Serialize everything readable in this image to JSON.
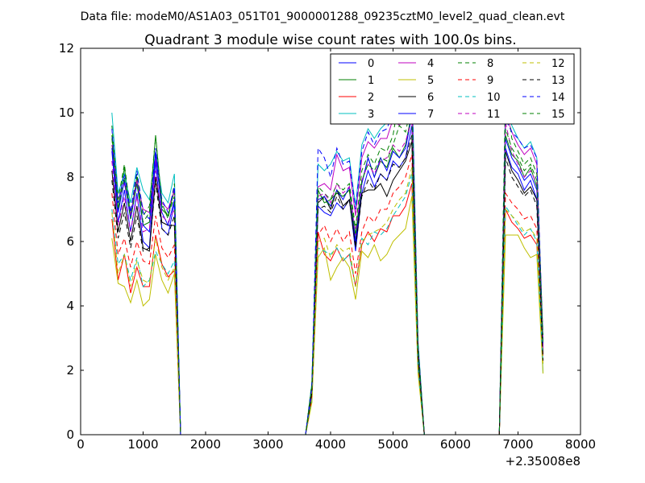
{
  "header": {
    "data_file": "Data file: modeM0/AS1A03_051T01_9000001288_09235cztM0_level2_quad_clean.evt"
  },
  "chart_data": {
    "type": "line",
    "title": "Quadrant 3 module wise count rates with 100.0s bins.",
    "xlabel": "",
    "ylabel": "",
    "xlim": [
      0,
      8000
    ],
    "ylim": [
      0,
      12
    ],
    "x_ticks": [
      0,
      1000,
      2000,
      3000,
      4000,
      5000,
      6000,
      7000,
      8000
    ],
    "y_ticks": [
      0,
      2,
      4,
      6,
      8,
      10,
      12
    ],
    "x_ticks_text": [
      "0",
      "1000",
      "2000",
      "3000",
      "4000",
      "5000",
      "6000",
      "7000",
      "8000"
    ],
    "y_ticks_text": [
      "0",
      "2",
      "4",
      "6",
      "8",
      "10",
      "12"
    ],
    "x_offset_label": "+2.35008e8",
    "legend_position": "top-right",
    "grid": false,
    "x": [
      500,
      600,
      700,
      800,
      900,
      1000,
      1100,
      1200,
      1300,
      1400,
      1500,
      1600,
      1700,
      1800,
      1900,
      2000,
      2100,
      2200,
      2300,
      2400,
      2500,
      2600,
      2700,
      2800,
      2900,
      3000,
      3100,
      3200,
      3300,
      3400,
      3500,
      3600,
      3700,
      3800,
      3900,
      4000,
      4100,
      4200,
      4300,
      4400,
      4500,
      4600,
      4700,
      4800,
      4900,
      5000,
      5100,
      5200,
      5300,
      5400,
      5500,
      5600,
      5700,
      5800,
      5900,
      6000,
      6100,
      6200,
      6300,
      6400,
      6500,
      6600,
      6700,
      6800,
      6900,
      7000,
      7100,
      7200,
      7300,
      7400
    ],
    "series": [
      {
        "name": "0",
        "color": "#0000ff",
        "dash": "solid",
        "values": [
          8.8,
          6.6,
          7.6,
          6.3,
          7.5,
          6.0,
          5.8,
          8.5,
          6.4,
          6.2,
          7.2,
          0,
          0,
          0,
          0,
          0,
          0,
          0,
          0,
          0,
          0,
          0,
          0,
          0,
          0,
          0,
          0,
          0,
          0,
          0,
          0,
          0,
          1.4,
          7.1,
          6.9,
          6.8,
          7.2,
          7.0,
          7.3,
          5.7,
          7.5,
          8.2,
          7.7,
          8.1,
          7.9,
          8.5,
          8.3,
          8.6,
          9.6,
          2.5,
          0,
          0,
          0,
          0,
          0,
          0,
          0,
          0,
          0,
          0,
          0,
          0,
          0,
          8.9,
          8.3,
          8.1,
          7.6,
          7.9,
          7.3,
          2.8
        ]
      },
      {
        "name": "1",
        "color": "#008000",
        "dash": "solid",
        "values": [
          9.3,
          7.0,
          8.3,
          6.8,
          8.0,
          6.5,
          6.6,
          8.7,
          7.0,
          6.8,
          7.6,
          0,
          0,
          0,
          0,
          0,
          0,
          0,
          0,
          0,
          0,
          0,
          0,
          0,
          0,
          0,
          0,
          0,
          0,
          0,
          0,
          0,
          1.5,
          7.6,
          7.2,
          7.3,
          7.5,
          7.4,
          7.6,
          6.0,
          7.8,
          8.6,
          8.0,
          8.5,
          8.3,
          8.9,
          8.6,
          9.0,
          10.0,
          2.6,
          0,
          0,
          0,
          0,
          0,
          0,
          0,
          0,
          0,
          0,
          0,
          0,
          0,
          9.3,
          8.7,
          8.5,
          8.0,
          8.3,
          7.7,
          2.9
        ]
      },
      {
        "name": "2",
        "color": "#ff0000",
        "dash": "solid",
        "values": [
          6.7,
          4.8,
          5.6,
          4.4,
          5.2,
          4.6,
          4.6,
          6.2,
          5.3,
          4.9,
          5.1,
          0,
          0,
          0,
          0,
          0,
          0,
          0,
          0,
          0,
          0,
          0,
          0,
          0,
          0,
          0,
          0,
          0,
          0,
          0,
          0,
          0,
          1.1,
          6.3,
          5.6,
          5.4,
          5.8,
          5.4,
          5.6,
          4.6,
          5.9,
          6.3,
          6.0,
          6.4,
          6.3,
          6.8,
          6.8,
          7.1,
          7.8,
          2.0,
          0,
          0,
          0,
          0,
          0,
          0,
          0,
          0,
          0,
          0,
          0,
          0,
          0,
          7.0,
          6.6,
          6.4,
          6.1,
          6.2,
          5.9,
          2.2
        ]
      },
      {
        "name": "3",
        "color": "#00bfbf",
        "dash": "solid",
        "values": [
          10.0,
          7.5,
          8.1,
          7.2,
          8.3,
          7.6,
          7.3,
          8.8,
          7.5,
          7.2,
          8.1,
          0,
          0,
          0,
          0,
          0,
          0,
          0,
          0,
          0,
          0,
          0,
          0,
          0,
          0,
          0,
          0,
          0,
          0,
          0,
          0,
          0,
          1.6,
          8.4,
          8.2,
          8.4,
          8.8,
          8.5,
          8.6,
          7.1,
          9.0,
          9.5,
          9.2,
          9.5,
          9.7,
          10.2,
          10.0,
          10.4,
          11.3,
          2.9,
          0,
          0,
          0,
          0,
          0,
          0,
          0,
          0,
          0,
          0,
          0,
          0,
          0,
          10.4,
          9.6,
          9.2,
          8.9,
          9.1,
          8.6,
          1.9
        ]
      },
      {
        "name": "4",
        "color": "#bf00bf",
        "dash": "solid",
        "values": [
          9.0,
          7.3,
          7.8,
          6.8,
          7.9,
          7.0,
          6.9,
          8.6,
          7.2,
          7.0,
          7.6,
          0,
          0,
          0,
          0,
          0,
          0,
          0,
          0,
          0,
          0,
          0,
          0,
          0,
          0,
          0,
          0,
          0,
          0,
          0,
          0,
          0,
          1.5,
          7.7,
          7.8,
          7.6,
          8.7,
          8.2,
          8.3,
          6.8,
          8.6,
          9.1,
          8.9,
          9.2,
          9.2,
          9.8,
          9.6,
          9.9,
          10.7,
          2.7,
          0,
          0,
          0,
          0,
          0,
          0,
          0,
          0,
          0,
          0,
          0,
          0,
          0,
          10.0,
          9.4,
          9.0,
          8.7,
          8.9,
          8.4,
          2.9
        ]
      },
      {
        "name": "5",
        "color": "#bfbf00",
        "dash": "solid",
        "values": [
          6.1,
          4.7,
          4.6,
          4.1,
          4.8,
          4.0,
          4.2,
          5.6,
          4.8,
          4.4,
          5.0,
          0,
          0,
          0,
          0,
          0,
          0,
          0,
          0,
          0,
          0,
          0,
          0,
          0,
          0,
          0,
          0,
          0,
          0,
          0,
          0,
          0,
          1.0,
          5.5,
          5.8,
          4.8,
          5.2,
          5.5,
          5.2,
          4.2,
          5.7,
          5.5,
          5.9,
          5.4,
          5.6,
          6.0,
          6.2,
          6.4,
          7.4,
          1.9,
          0,
          0,
          0,
          0,
          0,
          0,
          0,
          0,
          0,
          0,
          0,
          0,
          0,
          6.2,
          6.2,
          6.2,
          5.8,
          5.5,
          5.6,
          1.9
        ]
      },
      {
        "name": "6",
        "color": "#000000",
        "dash": "solid",
        "values": [
          8.2,
          6.3,
          7.2,
          6.0,
          7.1,
          5.8,
          5.7,
          8.0,
          6.6,
          6.5,
          6.5,
          0,
          0,
          0,
          0,
          0,
          0,
          0,
          0,
          0,
          0,
          0,
          0,
          0,
          0,
          0,
          0,
          0,
          0,
          0,
          0,
          0,
          1.3,
          7.2,
          7.4,
          7.0,
          7.6,
          7.1,
          7.3,
          5.9,
          7.5,
          7.6,
          7.6,
          7.8,
          7.4,
          7.9,
          8.2,
          8.5,
          9.1,
          2.3,
          0,
          0,
          0,
          0,
          0,
          0,
          0,
          0,
          0,
          0,
          0,
          0,
          0,
          8.8,
          8.2,
          7.9,
          7.5,
          7.7,
          7.3,
          2.5
        ]
      },
      {
        "name": "7",
        "color": "#0000ff",
        "dash": "solid",
        "values": [
          8.9,
          6.9,
          7.9,
          6.7,
          7.8,
          6.5,
          6.3,
          8.8,
          6.9,
          6.5,
          7.3,
          0,
          0,
          0,
          0,
          0,
          0,
          0,
          0,
          0,
          0,
          0,
          0,
          0,
          0,
          0,
          0,
          0,
          0,
          0,
          0,
          0,
          1.4,
          7.3,
          7.4,
          7.1,
          7.6,
          7.3,
          7.7,
          6.0,
          7.8,
          8.6,
          8.0,
          8.6,
          8.2,
          8.8,
          8.6,
          8.9,
          9.9,
          2.6,
          0,
          0,
          0,
          0,
          0,
          0,
          0,
          0,
          0,
          0,
          0,
          0,
          0,
          9.2,
          8.6,
          8.3,
          7.9,
          8.1,
          7.6,
          2.7
        ]
      },
      {
        "name": "8",
        "color": "#008000",
        "dash": "dashed",
        "values": [
          9.6,
          7.3,
          8.4,
          6.9,
          8.1,
          6.8,
          7.1,
          9.3,
          7.2,
          6.7,
          7.8,
          0,
          0,
          0,
          0,
          0,
          0,
          0,
          0,
          0,
          0,
          0,
          0,
          0,
          0,
          0,
          0,
          0,
          0,
          0,
          0,
          0,
          1.6,
          7.7,
          7.5,
          7.3,
          7.8,
          7.6,
          7.8,
          6.4,
          8.2,
          8.7,
          8.4,
          8.9,
          8.8,
          9.3,
          10.5,
          10.2,
          10.0,
          2.8,
          0,
          0,
          0,
          0,
          0,
          0,
          0,
          0,
          0,
          0,
          0,
          0,
          0,
          10.8,
          9.2,
          8.8,
          8.4,
          8.6,
          8.1,
          3.1
        ]
      },
      {
        "name": "9",
        "color": "#ff0000",
        "dash": "dashed",
        "values": [
          7.5,
          5.6,
          6.1,
          5.2,
          6.0,
          5.4,
          5.3,
          6.8,
          5.8,
          5.5,
          5.9,
          0,
          0,
          0,
          0,
          0,
          0,
          0,
          0,
          0,
          0,
          0,
          0,
          0,
          0,
          0,
          0,
          0,
          0,
          0,
          0,
          0,
          1.2,
          6.2,
          6.5,
          6.0,
          6.4,
          6.0,
          6.3,
          5.0,
          6.3,
          6.8,
          6.6,
          7.0,
          7.0,
          7.5,
          7.7,
          8.0,
          8.7,
          2.2,
          0,
          0,
          0,
          0,
          0,
          0,
          0,
          0,
          0,
          0,
          0,
          0,
          0,
          7.5,
          7.2,
          7.0,
          6.7,
          6.8,
          6.4,
          2.4
        ]
      },
      {
        "name": "10",
        "color": "#00bfbf",
        "dash": "dashed",
        "values": [
          7.0,
          5.3,
          5.6,
          4.8,
          5.5,
          4.6,
          4.8,
          5.7,
          5.3,
          5.0,
          5.4,
          0,
          0,
          0,
          0,
          0,
          0,
          0,
          0,
          0,
          0,
          0,
          0,
          0,
          0,
          0,
          0,
          0,
          0,
          0,
          0,
          0,
          1.1,
          5.8,
          5.7,
          5.6,
          5.8,
          5.4,
          5.6,
          4.6,
          6.1,
          5.9,
          6.3,
          6.2,
          6.4,
          6.8,
          7.1,
          7.4,
          8.1,
          2.1,
          0,
          0,
          0,
          0,
          0,
          0,
          0,
          0,
          0,
          0,
          0,
          0,
          0,
          7.1,
          6.8,
          6.5,
          6.2,
          6.4,
          6.0,
          2.2
        ]
      },
      {
        "name": "11",
        "color": "#bf00bf",
        "dash": "dashed",
        "values": [
          8.5,
          6.5,
          7.4,
          6.3,
          7.4,
          6.3,
          6.4,
          8.2,
          6.8,
          6.6,
          7.0,
          0,
          0,
          0,
          0,
          0,
          0,
          0,
          0,
          0,
          0,
          0,
          0,
          0,
          0,
          0,
          0,
          0,
          0,
          0,
          0,
          0,
          1.4,
          7.4,
          7.5,
          7.2,
          7.8,
          7.5,
          7.7,
          6.2,
          7.9,
          8.4,
          8.1,
          8.5,
          8.6,
          9.0,
          8.8,
          9.1,
          9.8,
          2.5,
          0,
          0,
          0,
          0,
          0,
          0,
          0,
          0,
          0,
          0,
          0,
          0,
          0,
          9.7,
          8.8,
          8.4,
          8.0,
          8.2,
          7.8,
          2.7
        ]
      },
      {
        "name": "12",
        "color": "#bfbf00",
        "dash": "dashed",
        "values": [
          6.9,
          5.0,
          5.6,
          4.6,
          5.4,
          4.8,
          4.7,
          6.1,
          5.2,
          4.8,
          5.2,
          0,
          0,
          0,
          0,
          0,
          0,
          0,
          0,
          0,
          0,
          0,
          0,
          0,
          0,
          0,
          0,
          0,
          0,
          0,
          0,
          0,
          1.0,
          6.0,
          6.1,
          5.5,
          5.9,
          5.7,
          5.8,
          4.6,
          6.0,
          6.2,
          6.3,
          6.4,
          6.6,
          7.0,
          7.3,
          7.5,
          8.3,
          2.0,
          0,
          0,
          0,
          0,
          0,
          0,
          0,
          0,
          0,
          0,
          0,
          0,
          0,
          7.0,
          6.8,
          6.6,
          6.3,
          6.4,
          6.1,
          2.2
        ]
      },
      {
        "name": "13",
        "color": "#000000",
        "dash": "dashed",
        "values": [
          7.9,
          6.1,
          6.9,
          5.8,
          6.8,
          5.7,
          5.8,
          7.8,
          6.4,
          6.2,
          6.8,
          0,
          0,
          0,
          0,
          0,
          0,
          0,
          0,
          0,
          0,
          0,
          0,
          0,
          0,
          0,
          0,
          0,
          0,
          0,
          0,
          0,
          1.3,
          7.0,
          7.1,
          6.9,
          7.4,
          7.0,
          7.3,
          5.8,
          7.4,
          7.9,
          7.6,
          8.1,
          7.9,
          8.4,
          8.3,
          8.6,
          9.3,
          2.4,
          0,
          0,
          0,
          0,
          0,
          0,
          0,
          0,
          0,
          0,
          0,
          0,
          0,
          8.6,
          8.0,
          7.7,
          7.4,
          7.6,
          7.1,
          2.3
        ]
      },
      {
        "name": "14",
        "color": "#0000ff",
        "dash": "dashed",
        "values": [
          9.5,
          7.2,
          8.1,
          6.9,
          8.2,
          6.9,
          6.7,
          8.9,
          7.3,
          6.9,
          7.7,
          0,
          0,
          0,
          0,
          0,
          0,
          0,
          0,
          0,
          0,
          0,
          0,
          0,
          0,
          0,
          0,
          0,
          0,
          0,
          0,
          0,
          1.5,
          8.9,
          8.6,
          8.0,
          8.9,
          8.4,
          8.5,
          7.0,
          8.8,
          9.4,
          9.0,
          9.4,
          9.5,
          10.0,
          9.8,
          10.1,
          10.9,
          2.8,
          0,
          0,
          0,
          0,
          0,
          0,
          0,
          0,
          0,
          0,
          0,
          0,
          0,
          9.8,
          9.4,
          9.2,
          8.9,
          9.0,
          8.6,
          2.9
        ]
      },
      {
        "name": "15",
        "color": "#008000",
        "dash": "dashed",
        "values": [
          9.2,
          7.0,
          8.0,
          6.7,
          7.8,
          6.6,
          6.9,
          9.3,
          7.1,
          6.8,
          7.4,
          0,
          0,
          0,
          0,
          0,
          0,
          0,
          0,
          0,
          0,
          0,
          0,
          0,
          0,
          0,
          0,
          0,
          0,
          0,
          0,
          0,
          1.5,
          7.5,
          7.3,
          7.1,
          7.6,
          7.4,
          7.6,
          6.2,
          7.9,
          8.4,
          8.2,
          8.6,
          8.5,
          9.0,
          9.6,
          9.4,
          10.3,
          2.7,
          0,
          0,
          0,
          0,
          0,
          0,
          0,
          0,
          0,
          0,
          0,
          0,
          0,
          9.5,
          8.9,
          8.6,
          8.2,
          8.4,
          7.9,
          2.8
        ]
      }
    ]
  }
}
